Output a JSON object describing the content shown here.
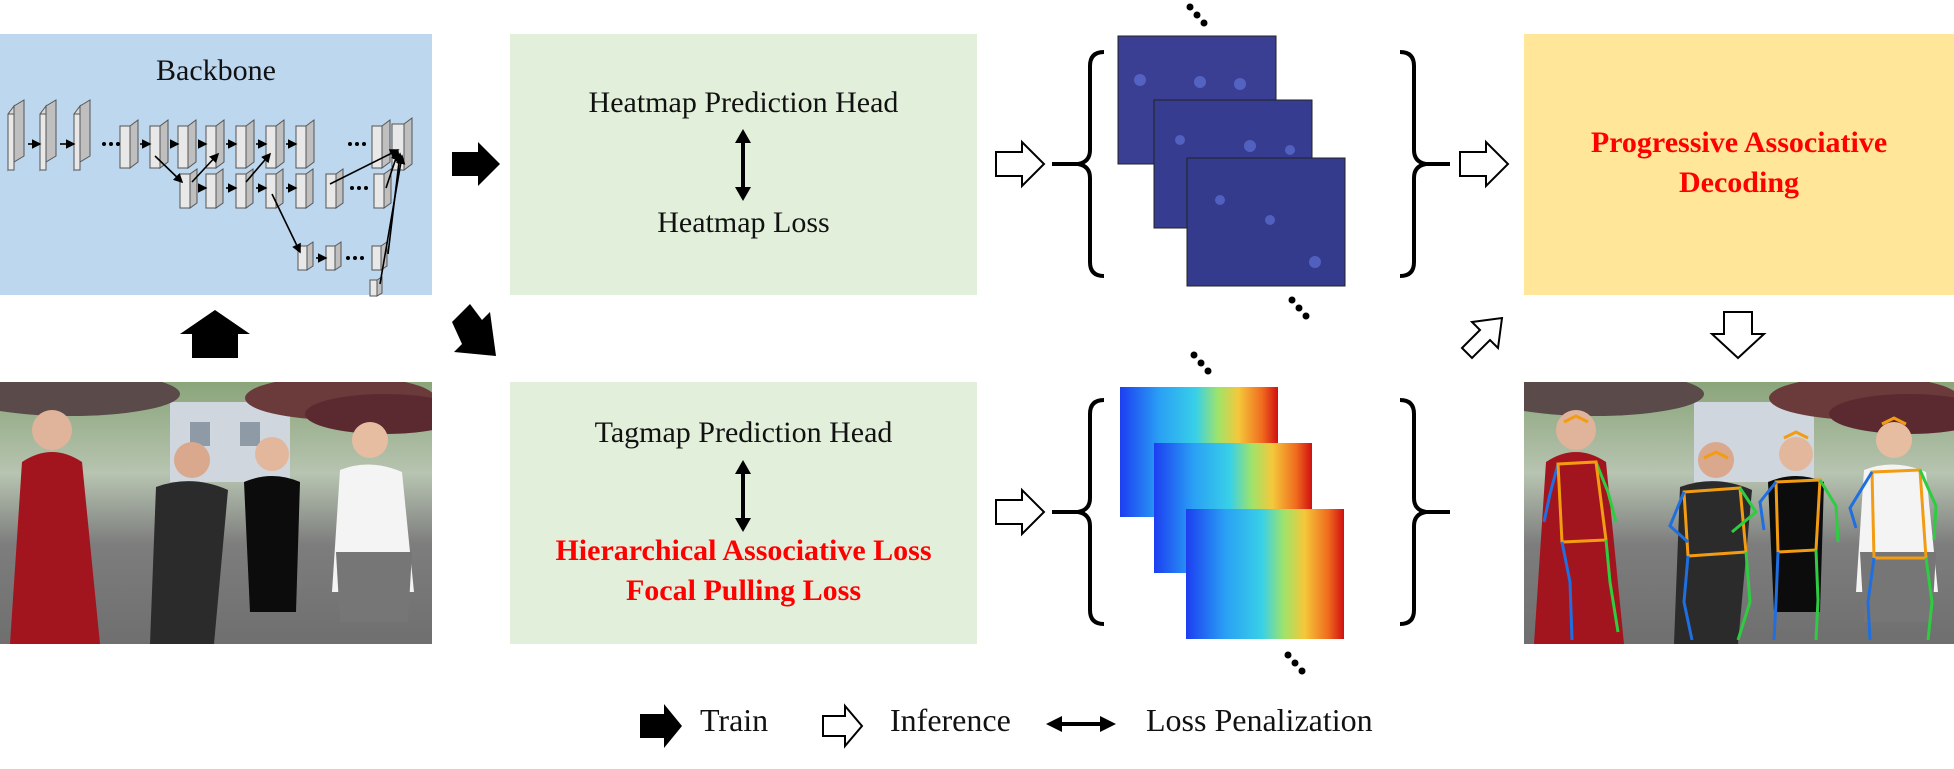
{
  "backbone": {
    "title": "Backbone"
  },
  "heatmap_head": {
    "title": "Heatmap Prediction Head",
    "loss": "Heatmap Loss"
  },
  "tagmap_head": {
    "title": "Tagmap Prediction Head",
    "loss_1": "Hierarchical Associative Loss",
    "loss_2": "Focal Pulling Loss"
  },
  "decoding": {
    "line_1": "Progressive Associative",
    "line_2": "Decoding"
  },
  "legend": {
    "train": "Train",
    "inference": "Inference",
    "loss": "Loss Penalization"
  },
  "colors": {
    "backbone_bg": "#bdd7ee",
    "head_bg": "#e2efda",
    "decoding_bg": "#ffe699",
    "highlight_text": "#ff0000"
  },
  "icons": {
    "train_arrow": "solid-black-arrow",
    "inference_arrow": "hollow-white-arrow",
    "loss_arrow": "double-headed-arrow"
  }
}
